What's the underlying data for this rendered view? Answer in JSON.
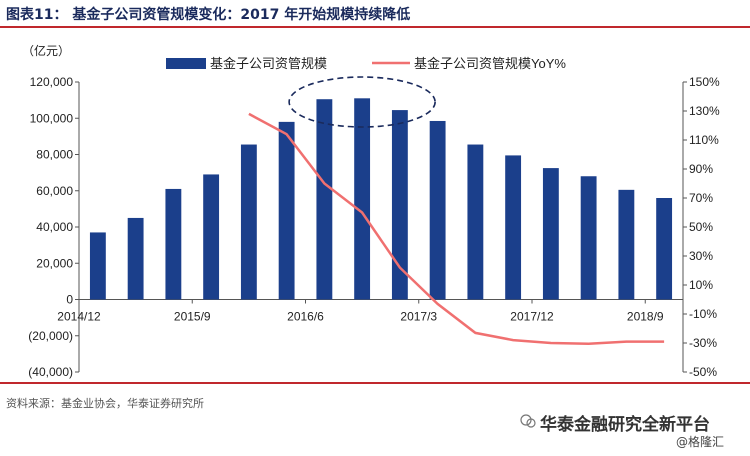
{
  "header": {
    "title": "图表11：  基金子公司资管规模变化：2017 年开始规模持续降低"
  },
  "footer": {
    "source": "资料来源：基金业协会，华泰证券研究所",
    "watermark": "华泰金融研究全新平台",
    "watermark_sub": "@格隆汇"
  },
  "chart_data": {
    "type": "bar",
    "unit_label": "（亿元）",
    "x_tick_labels": [
      "2014/12",
      "2015/9",
      "2016/6",
      "2017/3",
      "2017/12",
      "2018/9"
    ],
    "categories": [
      "2014/12",
      "2015/3",
      "2015/6",
      "2015/9",
      "2015/12",
      "2016/3",
      "2016/6",
      "2016/9",
      "2016/12",
      "2017/3",
      "2017/6",
      "2017/9",
      "2017/12",
      "2018/3",
      "2018/6",
      "2018/9"
    ],
    "series": [
      {
        "name": "基金子公司资管规模",
        "type": "bar",
        "color": "#1b3f8b",
        "values": [
          37000,
          45000,
          61000,
          69000,
          85500,
          98000,
          110500,
          111000,
          104500,
          98500,
          85500,
          79500,
          72500,
          68000,
          60500,
          56000
        ]
      },
      {
        "name": "基金子公司资管规模YoY%",
        "type": "line",
        "axis": "right",
        "color": "#f07070",
        "values": [
          null,
          null,
          null,
          null,
          128,
          114,
          80,
          60,
          22,
          -3,
          -23,
          -28,
          -30,
          -30.5,
          -29,
          -29
        ]
      }
    ],
    "y_left": {
      "ticks": [
        "(40,000)",
        "(20,000)",
        "0",
        "20,000",
        "40,000",
        "60,000",
        "80,000",
        "100,000",
        "120,000"
      ],
      "range": [
        -40000,
        120000
      ]
    },
    "y_right": {
      "ticks": [
        "-50%",
        "-30%",
        "-10%",
        "10%",
        "30%",
        "50%",
        "70%",
        "90%",
        "110%",
        "130%",
        "150%"
      ],
      "range": [
        -50,
        150
      ]
    }
  }
}
